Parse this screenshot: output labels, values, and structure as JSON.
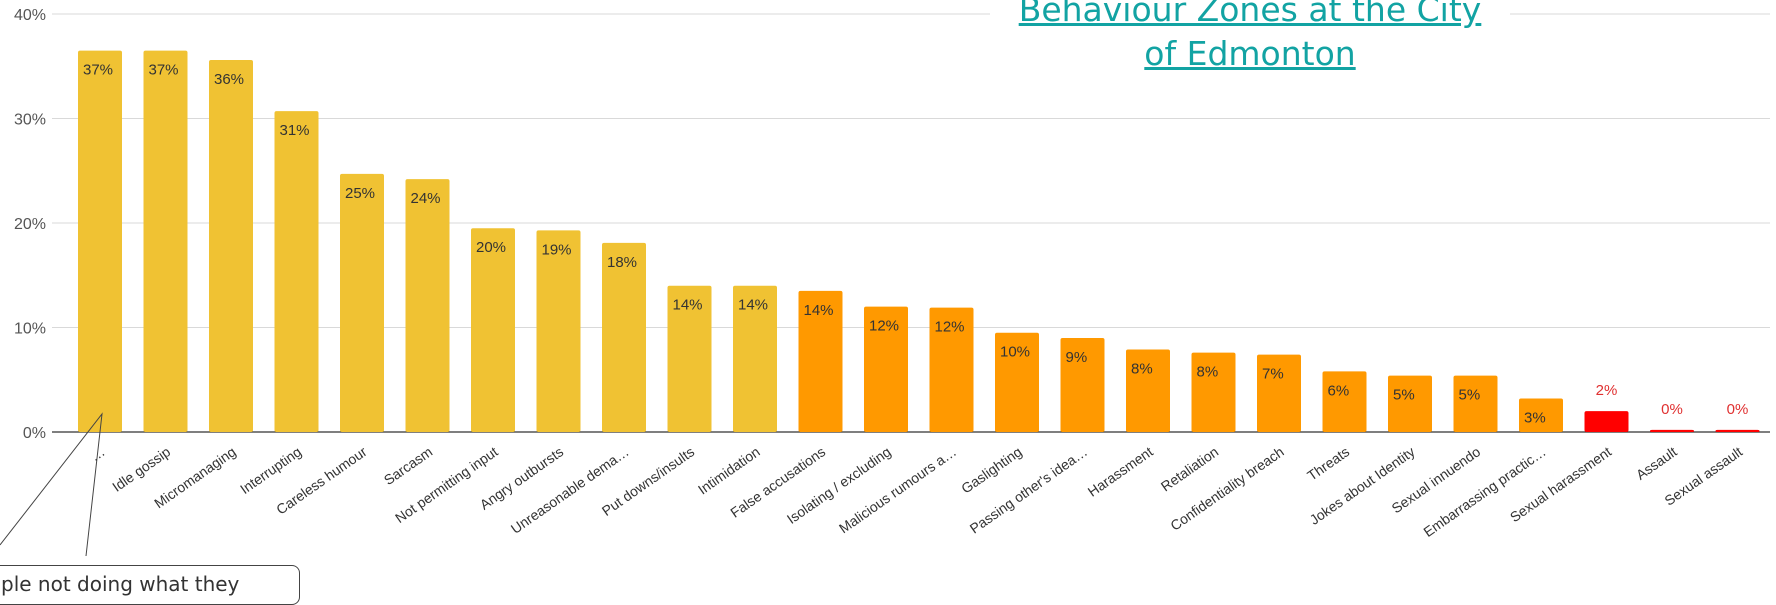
{
  "title_link": {
    "line1": "Behaviour Zones at the City",
    "line2": "of Edmonton"
  },
  "callout": {
    "text": "ple not doing what they"
  },
  "chart_data": {
    "type": "bar",
    "title": "",
    "xlabel": "",
    "ylabel": "",
    "ylim": [
      0,
      0.4
    ],
    "yticks": [
      "0%",
      "10%",
      "20%",
      "30%",
      "40%"
    ],
    "grid": true,
    "categories": [
      "…",
      "Idle gossip",
      "Micromanaging",
      "Interrupting",
      "Careless humour",
      "Sarcasm",
      "Not permitting input",
      "Angry outbursts",
      "Unreasonable dema…",
      "Put downs/insults",
      "Intimidation",
      "False accusations",
      "Isolating / excluding",
      "Malicious rumours a…",
      "Gaslighting",
      "Passing other's idea…",
      "Harassment",
      "Retaliation",
      "Confidentiality breach",
      "Threats",
      "Jokes about Identity",
      "Sexual innuendo",
      "Embarrassing practic…",
      "Sexual harassment",
      "Assault",
      "Sexual assault"
    ],
    "values": [
      0.365,
      0.365,
      0.356,
      0.307,
      0.247,
      0.242,
      0.195,
      0.193,
      0.181,
      0.14,
      0.14,
      0.135,
      0.12,
      0.119,
      0.095,
      0.09,
      0.079,
      0.076,
      0.074,
      0.058,
      0.054,
      0.054,
      0.032,
      0.02,
      0.002,
      0.002
    ],
    "labels": [
      "37%",
      "37%",
      "36%",
      "31%",
      "25%",
      "24%",
      "20%",
      "19%",
      "18%",
      "14%",
      "14%",
      "14%",
      "12%",
      "12%",
      "10%",
      "9%",
      "8%",
      "8%",
      "7%",
      "6%",
      "5%",
      "5%",
      "3%",
      "2%",
      "0%",
      "0%"
    ],
    "zones": [
      "yellow",
      "yellow",
      "yellow",
      "yellow",
      "yellow",
      "yellow",
      "yellow",
      "yellow",
      "yellow",
      "yellow",
      "yellow",
      "orange",
      "orange",
      "orange",
      "orange",
      "orange",
      "orange",
      "orange",
      "orange",
      "orange",
      "orange",
      "orange",
      "orange",
      "red",
      "red",
      "red"
    ],
    "colors": {
      "yellow": "#f0c233",
      "orange": "#ff9900",
      "red": "#ff0000",
      "grid": "#d9d9d9",
      "axis": "#333333"
    }
  }
}
